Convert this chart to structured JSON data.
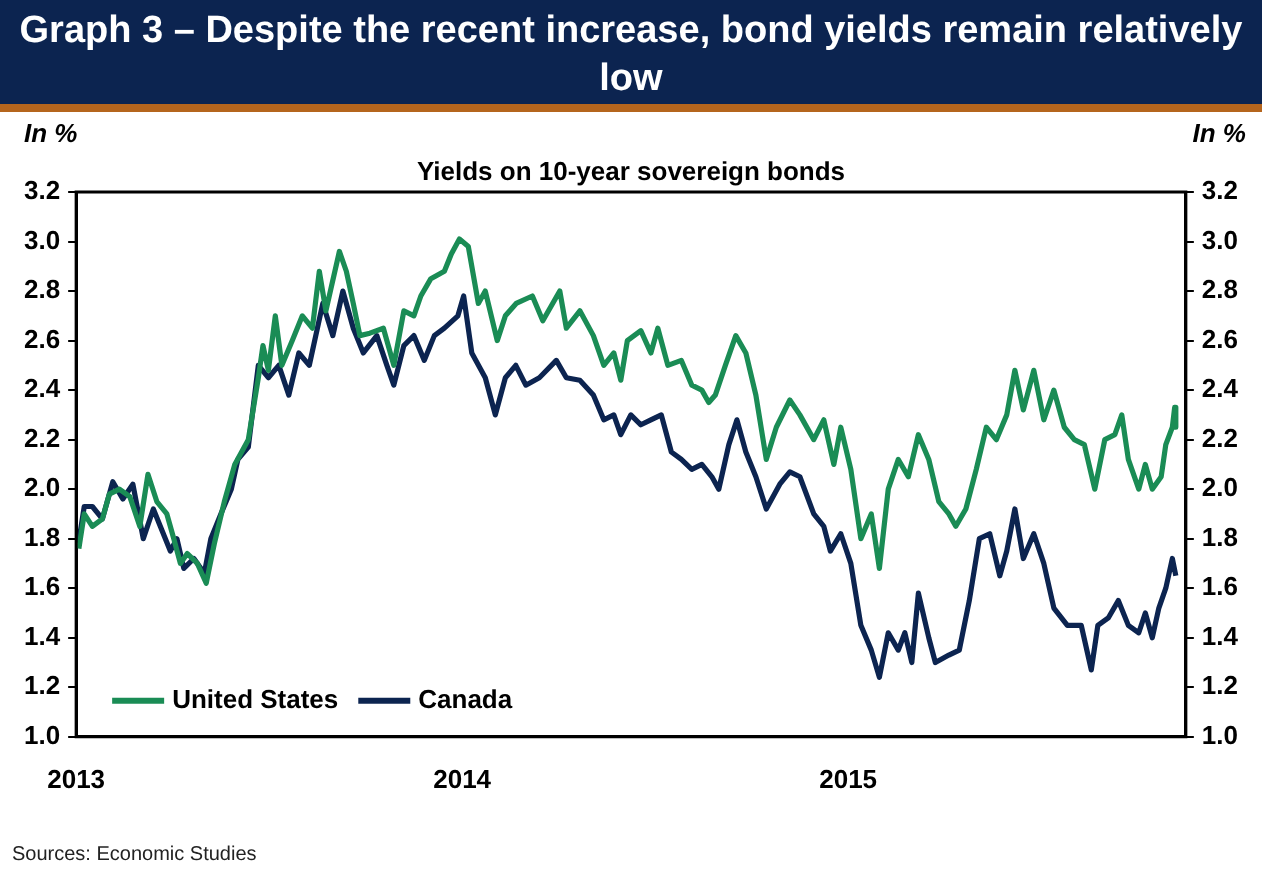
{
  "chart_data": {
    "type": "line",
    "title": "Graph 3 – Despite the recent increase, bond yields remain relatively low",
    "subtitle": "Yields on 10-year sovereign bonds",
    "ylabel": "In %",
    "y2label": "In %",
    "annotations": [
      "Sources: Economic Studies"
    ],
    "xlim": [
      2013,
      2015.875
    ],
    "xticks": [
      {
        "value": 2013,
        "label": "2013"
      },
      {
        "value": 2014,
        "label": "2014"
      },
      {
        "value": 2015,
        "label": "2015"
      }
    ],
    "ylim": [
      1.0,
      3.2
    ],
    "yticks": [
      {
        "value": 1.0,
        "label": "1.0"
      },
      {
        "value": 1.2,
        "label": "1.2"
      },
      {
        "value": 1.4,
        "label": "1.4"
      },
      {
        "value": 1.6,
        "label": "1.6"
      },
      {
        "value": 1.8,
        "label": "1.8"
      },
      {
        "value": 2.0,
        "label": "2.0"
      },
      {
        "value": 2.2,
        "label": "2.2"
      },
      {
        "value": 2.4,
        "label": "2.4"
      },
      {
        "value": 2.6,
        "label": "2.6"
      },
      {
        "value": 2.8,
        "label": "2.8"
      },
      {
        "value": 3.0,
        "label": "3.0"
      },
      {
        "value": 3.2,
        "label": "3.2"
      }
    ],
    "y2lim": [
      1.0,
      3.2
    ],
    "y2ticks": [
      {
        "value": 1.0,
        "label": "1.0"
      },
      {
        "value": 1.2,
        "label": "1.2"
      },
      {
        "value": 1.4,
        "label": "1.4"
      },
      {
        "value": 1.6,
        "label": "1.6"
      },
      {
        "value": 1.8,
        "label": "1.8"
      },
      {
        "value": 2.0,
        "label": "2.0"
      },
      {
        "value": 2.2,
        "label": "2.2"
      },
      {
        "value": 2.4,
        "label": "2.4"
      },
      {
        "value": 2.6,
        "label": "2.6"
      },
      {
        "value": 2.8,
        "label": "2.8"
      },
      {
        "value": 3.0,
        "label": "3.0"
      },
      {
        "value": 3.2,
        "label": "3.2"
      }
    ],
    "grid": false,
    "legend": "bottom left",
    "marker": "none",
    "line_style": "solid",
    "series": [
      {
        "name": "United States",
        "color": "#1a8c55",
        "x": [
          2013.007,
          2013.021,
          2013.042,
          2013.068,
          2013.086,
          2013.112,
          2013.139,
          2013.165,
          2013.186,
          2013.209,
          2013.235,
          2013.253,
          2013.27,
          2013.288,
          2013.314,
          2013.337,
          2013.358,
          2013.384,
          2013.411,
          2013.446,
          2013.472,
          2013.484,
          2013.498,
          2013.516,
          2013.533,
          2013.56,
          2013.586,
          2013.612,
          2013.63,
          2013.647,
          2013.682,
          2013.7,
          2013.718,
          2013.735,
          2013.761,
          2013.796,
          2013.823,
          2013.849,
          2013.875,
          2013.893,
          2013.919,
          2013.954,
          2013.972,
          2013.993,
          2014.016,
          2014.042,
          2014.06,
          2014.091,
          2014.112,
          2014.14,
          2014.182,
          2014.209,
          2014.253,
          2014.27,
          2014.305,
          2014.34,
          2014.367,
          2014.393,
          2014.411,
          2014.428,
          2014.463,
          2014.489,
          2014.507,
          2014.533,
          2014.568,
          2014.595,
          2014.621,
          2014.639,
          2014.656,
          2014.682,
          2014.709,
          2014.735,
          2014.761,
          2014.788,
          2014.814,
          2014.849,
          2014.875,
          2014.911,
          2014.937,
          2014.963,
          2014.981,
          2015.007,
          2015.033,
          2015.06,
          2015.081,
          2015.104,
          2015.13,
          2015.156,
          2015.182,
          2015.209,
          2015.235,
          2015.261,
          2015.279,
          2015.305,
          2015.332,
          2015.358,
          2015.384,
          2015.411,
          2015.432,
          2015.454,
          2015.481,
          2015.507,
          2015.533,
          2015.56,
          2015.586,
          2015.612,
          2015.639,
          2015.665,
          2015.691,
          2015.709,
          2015.726,
          2015.753,
          2015.77,
          2015.788,
          2015.811,
          2015.823,
          2015.84,
          2015.846,
          2015.849
        ],
        "values": [
          1.76,
          1.9,
          1.85,
          1.88,
          1.98,
          2.0,
          1.97,
          1.85,
          2.06,
          1.95,
          1.9,
          1.8,
          1.7,
          1.74,
          1.7,
          1.62,
          1.78,
          1.95,
          2.1,
          2.2,
          2.45,
          2.58,
          2.48,
          2.7,
          2.5,
          2.6,
          2.7,
          2.65,
          2.88,
          2.72,
          2.96,
          2.88,
          2.75,
          2.62,
          2.63,
          2.65,
          2.5,
          2.72,
          2.7,
          2.78,
          2.85,
          2.88,
          2.95,
          3.01,
          2.98,
          2.75,
          2.8,
          2.6,
          2.7,
          2.75,
          2.78,
          2.68,
          2.8,
          2.65,
          2.72,
          2.62,
          2.5,
          2.55,
          2.44,
          2.6,
          2.64,
          2.55,
          2.65,
          2.5,
          2.52,
          2.42,
          2.4,
          2.35,
          2.38,
          2.5,
          2.62,
          2.55,
          2.38,
          2.12,
          2.25,
          2.36,
          2.3,
          2.2,
          2.28,
          2.1,
          2.25,
          2.08,
          1.8,
          1.9,
          1.68,
          2.0,
          2.12,
          2.05,
          2.22,
          2.12,
          1.95,
          1.9,
          1.85,
          1.92,
          2.08,
          2.25,
          2.2,
          2.3,
          2.48,
          2.32,
          2.48,
          2.28,
          2.4,
          2.25,
          2.2,
          2.18,
          2.0,
          2.2,
          2.22,
          2.3,
          2.12,
          2.0,
          2.1,
          2.0,
          2.05,
          2.18,
          2.25,
          2.33,
          2.25
        ]
      },
      {
        "name": "Canada",
        "color": "#0c2450",
        "x": [
          2013.007,
          2013.021,
          2013.042,
          2013.068,
          2013.095,
          2013.121,
          2013.147,
          2013.174,
          2013.2,
          2013.218,
          2013.244,
          2013.261,
          2013.279,
          2013.305,
          2013.332,
          2013.349,
          2013.375,
          2013.402,
          2013.419,
          2013.446,
          2013.472,
          2013.498,
          2013.525,
          2013.551,
          2013.577,
          2013.604,
          2013.639,
          2013.665,
          2013.691,
          2013.718,
          2013.744,
          2013.779,
          2013.805,
          2013.823,
          2013.849,
          2013.875,
          2013.902,
          2013.928,
          2013.954,
          2013.989,
          2014.004,
          2014.025,
          2014.06,
          2014.086,
          2014.112,
          2014.139,
          2014.165,
          2014.2,
          2014.244,
          2014.27,
          2014.305,
          2014.34,
          2014.367,
          2014.393,
          2014.411,
          2014.437,
          2014.463,
          2014.489,
          2014.516,
          2014.542,
          2014.568,
          2014.595,
          2014.621,
          2014.647,
          2014.665,
          2014.691,
          2014.712,
          2014.735,
          2014.761,
          2014.788,
          2014.823,
          2014.849,
          2014.875,
          2014.911,
          2014.937,
          2014.954,
          2014.981,
          2015.007,
          2015.033,
          2015.06,
          2015.081,
          2015.104,
          2015.13,
          2015.147,
          2015.165,
          2015.182,
          2015.209,
          2015.226,
          2015.261,
          2015.288,
          2015.314,
          2015.34,
          2015.367,
          2015.393,
          2015.411,
          2015.432,
          2015.454,
          2015.481,
          2015.507,
          2015.533,
          2015.568,
          2015.604,
          2015.63,
          2015.647,
          2015.674,
          2015.7,
          2015.726,
          2015.753,
          2015.77,
          2015.788,
          2015.805,
          2015.823,
          2015.84,
          2015.849
        ],
        "values": [
          1.79,
          1.93,
          1.93,
          1.88,
          2.03,
          1.96,
          2.02,
          1.8,
          1.92,
          1.85,
          1.75,
          1.8,
          1.68,
          1.72,
          1.66,
          1.8,
          1.9,
          2.0,
          2.12,
          2.17,
          2.5,
          2.45,
          2.5,
          2.38,
          2.55,
          2.5,
          2.75,
          2.62,
          2.8,
          2.65,
          2.55,
          2.62,
          2.5,
          2.42,
          2.58,
          2.62,
          2.52,
          2.62,
          2.65,
          2.7,
          2.78,
          2.55,
          2.45,
          2.3,
          2.45,
          2.5,
          2.42,
          2.45,
          2.52,
          2.45,
          2.44,
          2.38,
          2.28,
          2.3,
          2.22,
          2.3,
          2.26,
          2.28,
          2.3,
          2.15,
          2.12,
          2.08,
          2.1,
          2.05,
          2.0,
          2.18,
          2.28,
          2.15,
          2.05,
          1.92,
          2.02,
          2.07,
          2.05,
          1.9,
          1.85,
          1.75,
          1.82,
          1.7,
          1.45,
          1.35,
          1.24,
          1.42,
          1.35,
          1.42,
          1.3,
          1.58,
          1.4,
          1.3,
          1.33,
          1.35,
          1.55,
          1.8,
          1.82,
          1.65,
          1.75,
          1.92,
          1.72,
          1.82,
          1.7,
          1.52,
          1.45,
          1.45,
          1.27,
          1.45,
          1.48,
          1.55,
          1.45,
          1.42,
          1.5,
          1.4,
          1.52,
          1.6,
          1.72,
          1.65
        ]
      }
    ]
  }
}
